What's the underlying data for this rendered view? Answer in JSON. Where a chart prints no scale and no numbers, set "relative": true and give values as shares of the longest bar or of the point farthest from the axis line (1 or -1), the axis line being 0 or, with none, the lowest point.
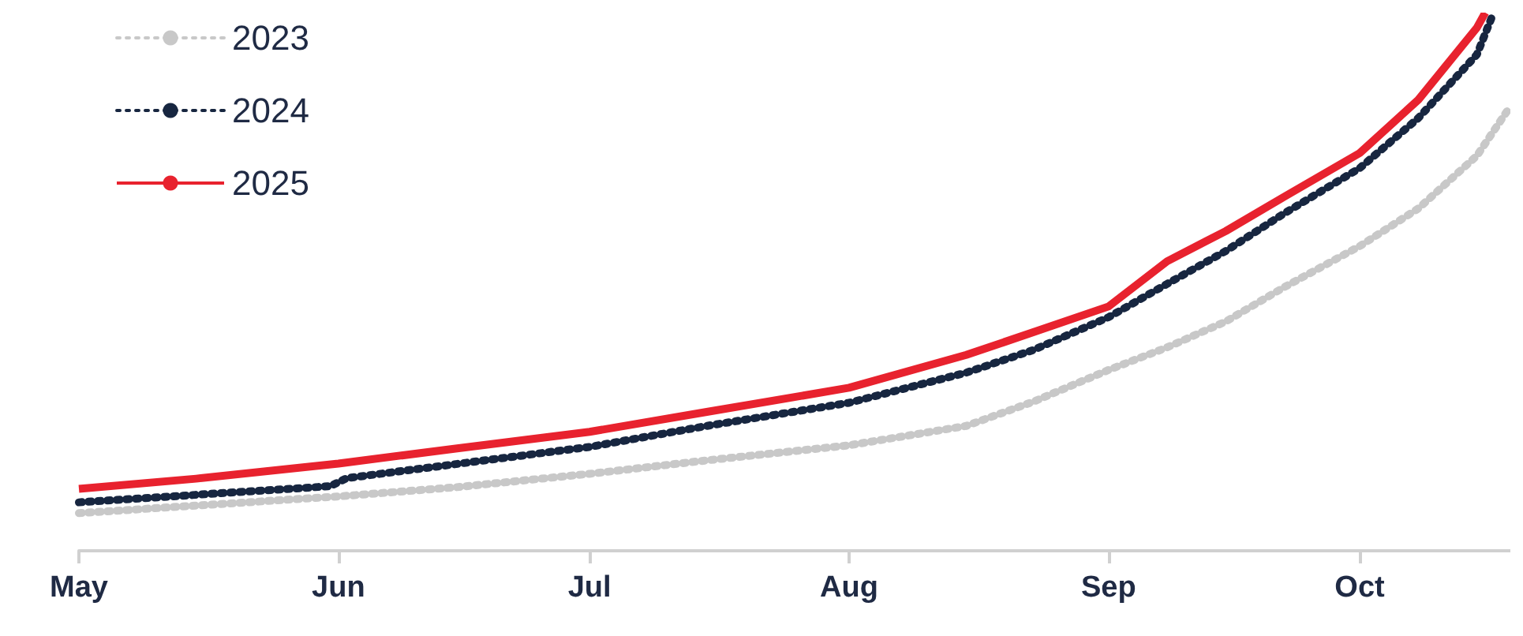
{
  "chart_data": {
    "type": "line",
    "relative": true,
    "xlim": [
      "--05-01",
      "--10-19"
    ],
    "xticks": [
      {
        "value": "--05-01",
        "label": "May"
      },
      {
        "value": "--06-01",
        "label": "Jun"
      },
      {
        "value": "--07-01",
        "label": "Jul"
      },
      {
        "value": "--08-01",
        "label": "Aug"
      },
      {
        "value": "--09-01",
        "label": "Sep"
      },
      {
        "value": "--10-01",
        "label": "Oct"
      }
    ],
    "grid": false,
    "legend": "top left",
    "marker": "none",
    "series": [
      {
        "name": "2023",
        "color": "#c8c8c8",
        "line_style": "dotted",
        "x": [
          "--05-01",
          "--05-15",
          "--06-01",
          "--06-15",
          "--07-01",
          "--07-15",
          "--08-01",
          "--08-15",
          "--08-23",
          "--09-01",
          "--09-08",
          "--09-15",
          "--09-22",
          "--10-01",
          "--10-08",
          "--10-15",
          "--10-19"
        ],
        "values": [
          0.07,
          0.084,
          0.101,
          0.118,
          0.143,
          0.168,
          0.196,
          0.232,
          0.277,
          0.336,
          0.378,
          0.426,
          0.49,
          0.566,
          0.636,
          0.734,
          0.826
        ]
      },
      {
        "name": "2024",
        "color": "#172640",
        "line_style": "dotted",
        "x": [
          "--05-01",
          "--05-15",
          "--05-31",
          "--06-02",
          "--07-01",
          "--07-15",
          "--08-01",
          "--08-15",
          "--08-23",
          "--09-01",
          "--09-08",
          "--09-15",
          "--09-22",
          "--10-01",
          "--10-08",
          "--10-15",
          "--10-17"
        ],
        "values": [
          0.09,
          0.104,
          0.12,
          0.135,
          0.193,
          0.232,
          0.275,
          0.331,
          0.373,
          0.434,
          0.496,
          0.557,
          0.627,
          0.711,
          0.804,
          0.922,
          1
        ]
      },
      {
        "name": "2025",
        "color": "#e8222e",
        "line_style": "solid",
        "x": [
          "--05-01",
          "--05-15",
          "--06-01",
          "--06-15",
          "--07-01",
          "--07-15",
          "--08-01",
          "--08-15",
          "--08-23",
          "--09-01",
          "--09-08",
          "--09-15",
          "--09-22",
          "--10-01",
          "--10-08",
          "--10-15",
          "--10-16"
        ],
        "values": [
          0.115,
          0.134,
          0.162,
          0.19,
          0.221,
          0.258,
          0.303,
          0.364,
          0.406,
          0.454,
          0.538,
          0.594,
          0.658,
          0.739,
          0.838,
          0.972,
          1
        ]
      }
    ]
  }
}
